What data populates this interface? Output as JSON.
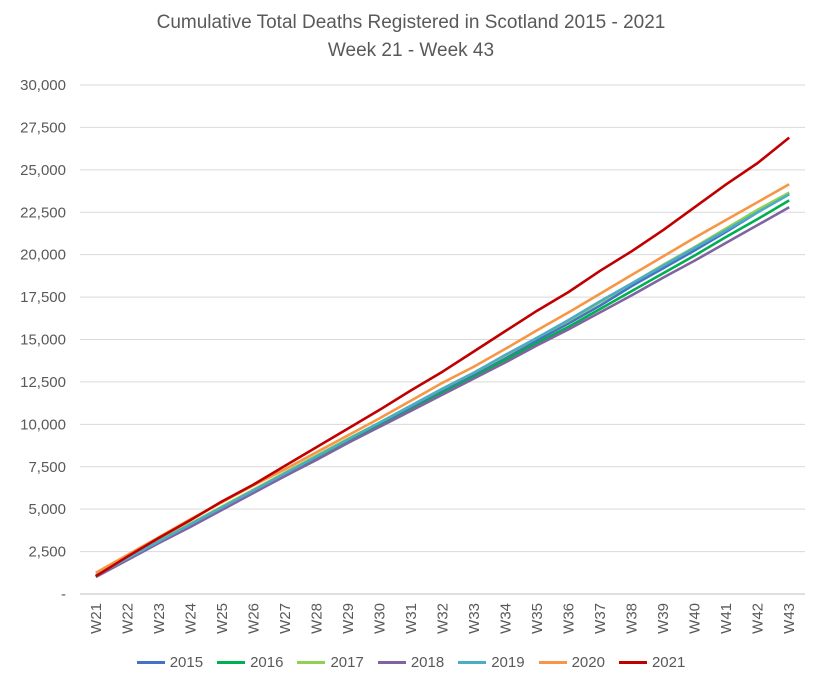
{
  "chart_data": {
    "type": "line",
    "title": "Cumulative Total Deaths Registered in Scotland 2015 - 2021",
    "subtitle": "Week 21 - Week 43",
    "xlabel": "",
    "ylabel": "",
    "ylim": [
      0,
      30000
    ],
    "yticks": [
      "-",
      "2,500",
      "5,000",
      "7,500",
      "10,000",
      "12,500",
      "15,000",
      "17,500",
      "20,000",
      "22,500",
      "25,000",
      "27,500",
      "30,000"
    ],
    "grid": true,
    "legend_position": "bottom",
    "categories": [
      "W21",
      "W22",
      "W23",
      "W24",
      "W25",
      "W26",
      "W27",
      "W28",
      "W29",
      "W30",
      "W31",
      "W32",
      "W33",
      "W34",
      "W35",
      "W36",
      "W37",
      "W38",
      "W39",
      "W40",
      "W41",
      "W42",
      "W43"
    ],
    "series": [
      {
        "name": "2015",
        "color": "#4472C4",
        "values": [
          1050,
          2100,
          3150,
          4100,
          5100,
          6100,
          7050,
          8050,
          9000,
          9950,
          10950,
          11950,
          12900,
          13900,
          14950,
          15950,
          17000,
          18150,
          19200,
          20250,
          21350,
          22500,
          23650
        ]
      },
      {
        "name": "2016",
        "color": "#00B050",
        "values": [
          1050,
          2050,
          3050,
          4000,
          5000,
          6000,
          6950,
          7950,
          8950,
          9900,
          10850,
          11850,
          12800,
          13800,
          14800,
          15750,
          16800,
          17850,
          18900,
          19950,
          21050,
          22100,
          23200
        ]
      },
      {
        "name": "2017",
        "color": "#92D050",
        "values": [
          1100,
          2150,
          3150,
          4150,
          5150,
          6150,
          7150,
          8150,
          9150,
          10100,
          11100,
          12100,
          13050,
          14050,
          15100,
          16100,
          17200,
          18300,
          19400,
          20450,
          21550,
          22650,
          23650
        ]
      },
      {
        "name": "2018",
        "color": "#8064A2",
        "values": [
          1000,
          2000,
          3000,
          3950,
          4950,
          5950,
          6950,
          7900,
          8900,
          9850,
          10800,
          11750,
          12700,
          13650,
          14650,
          15600,
          16600,
          17600,
          18650,
          19650,
          20700,
          21750,
          22800
        ]
      },
      {
        "name": "2019",
        "color": "#4BACC6",
        "values": [
          1100,
          2100,
          3100,
          4100,
          5100,
          6100,
          7100,
          8100,
          9100,
          10100,
          11100,
          12100,
          13050,
          14100,
          15100,
          16150,
          17250,
          18300,
          19350,
          20400,
          21450,
          22500,
          23550
        ]
      },
      {
        "name": "2020",
        "color": "#F79646",
        "values": [
          1250,
          2300,
          3350,
          4400,
          5400,
          6400,
          7350,
          8350,
          9350,
          10350,
          11400,
          12450,
          13400,
          14450,
          15550,
          16600,
          17700,
          18800,
          19900,
          21000,
          22050,
          23100,
          24150
        ]
      },
      {
        "name": "2021",
        "color": "#C00000",
        "values": [
          1050,
          2200,
          3300,
          4350,
          5450,
          6450,
          7550,
          8650,
          9750,
          10850,
          12000,
          13100,
          14300,
          15500,
          16700,
          17800,
          19050,
          20200,
          21450,
          22800,
          24150,
          25400,
          26900
        ]
      }
    ]
  }
}
